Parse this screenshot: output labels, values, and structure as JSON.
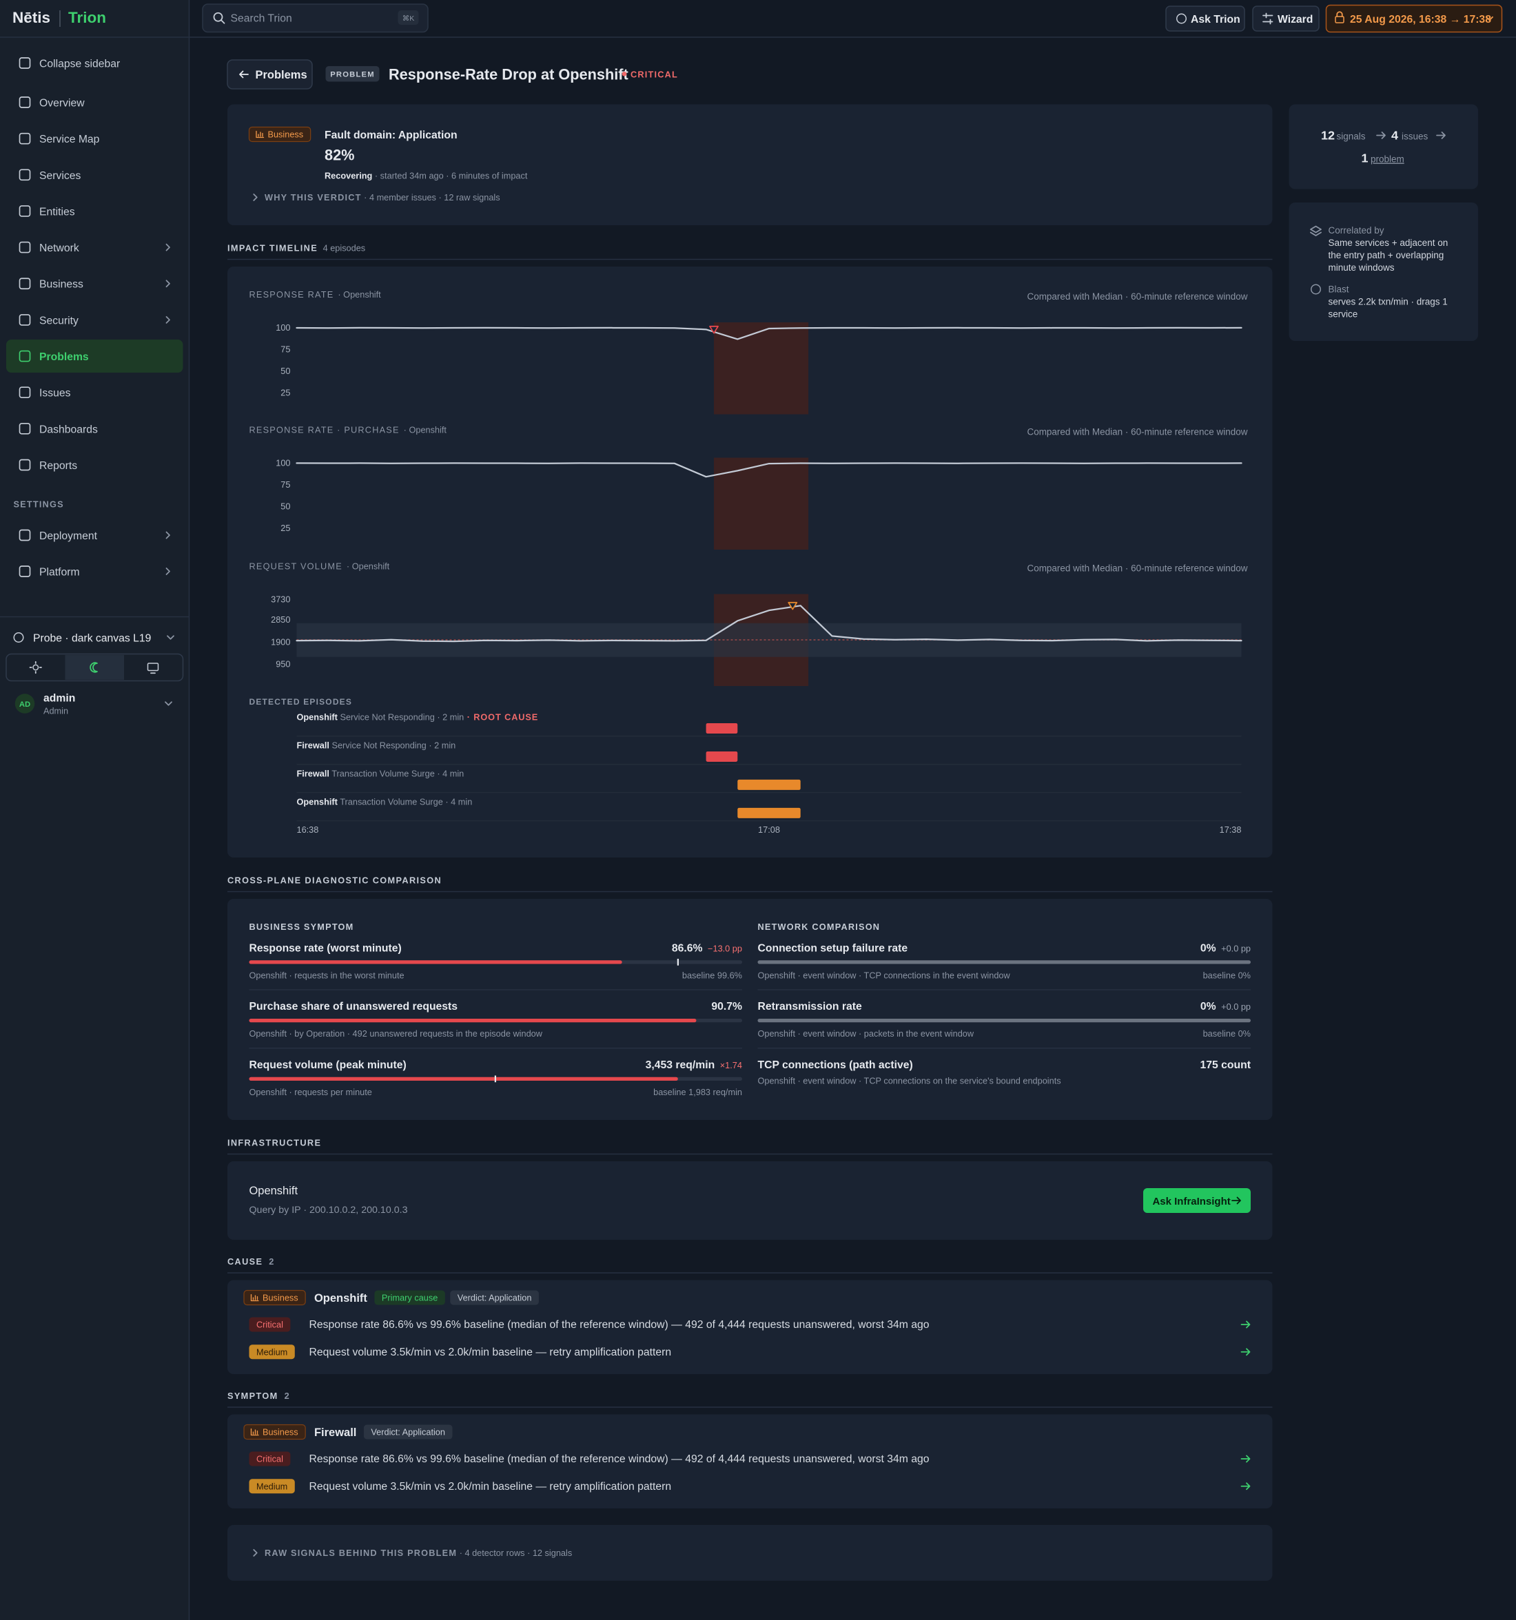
{
  "brand": {
    "logo": "Nētis",
    "product": "Trion"
  },
  "search": {
    "placeholder": "Search Trion",
    "shortcut": "⌘K"
  },
  "topbar": {
    "ask": "Ask Trion",
    "wizard": "Wizard",
    "time_range": "25 Aug 2026, 16:38 → 17:38"
  },
  "sidebar": {
    "collapse": "Collapse sidebar",
    "nav": [
      {
        "label": "Overview"
      },
      {
        "label": "Service Map"
      },
      {
        "label": "Services"
      },
      {
        "label": "Entities"
      },
      {
        "label": "Network",
        "expandable": true
      },
      {
        "label": "Business",
        "expandable": true
      },
      {
        "label": "Security",
        "expandable": true
      },
      {
        "label": "Problems",
        "active": true
      },
      {
        "label": "Issues"
      },
      {
        "label": "Dashboards"
      },
      {
        "label": "Reports"
      }
    ],
    "settings_heading": "SETTINGS",
    "settings": [
      {
        "label": "Deployment",
        "expandable": true
      },
      {
        "label": "Platform",
        "expandable": true
      }
    ],
    "probe": "Probe · dark canvas L19",
    "user": {
      "initials": "AD",
      "name": "admin",
      "role": "Admin"
    }
  },
  "problem": {
    "back": "Problems",
    "tag": "PROBLEM",
    "title": "Response-Rate Drop at Openshift",
    "severity": "CRITICAL"
  },
  "verdict": {
    "badge": "Business",
    "domain": "Fault domain: Application",
    "score": "82%",
    "status": "Recovering",
    "meta": " · started 34m ago · 6 minutes of impact",
    "why": "WHY THIS VERDICT",
    "why_meta": " · 4 member issues · 12 raw signals"
  },
  "summary": {
    "signals": 12,
    "signals_label": "signals",
    "issues": 4,
    "issues_label": "issues",
    "problems": 1,
    "problems_label": "problem"
  },
  "correlation": {
    "correlated_label": "Correlated by",
    "correlated_text": "Same services + adjacent on the entry path + overlapping minute windows",
    "blast_label": "Blast",
    "blast_text": "serves 2.2k txn/min · drags 1 service"
  },
  "timeline": {
    "heading": "IMPACT TIMELINE",
    "meta": "4 episodes",
    "xlim": [
      0,
      60
    ],
    "xticks": [
      {
        "value": 0,
        "label": "16:38"
      },
      {
        "value": 30,
        "label": "17:08"
      },
      {
        "value": 60,
        "label": "17:38"
      }
    ],
    "episodes_heading": "DETECTED EPISODES",
    "episodes": [
      {
        "entity": "Openshift",
        "label": " Service Not Responding",
        "duration": " · 2 min",
        "tag": " · ROOT CAUSE",
        "start": 26,
        "end": 28,
        "color": "#e5484d"
      },
      {
        "entity": "Firewall",
        "label": " Service Not Responding",
        "duration": " · 2 min",
        "start": 26,
        "end": 28,
        "color": "#e5484d"
      },
      {
        "entity": "Firewall",
        "label": " Transaction Volume Surge",
        "duration": " · 4 min",
        "start": 28,
        "end": 32,
        "color": "#e8892b"
      },
      {
        "entity": "Openshift",
        "label": " Transaction Volume Surge",
        "duration": " · 4 min",
        "start": 28,
        "end": 32,
        "color": "#e8892b"
      }
    ]
  },
  "chart_data": [
    {
      "type": "line",
      "title": "RESPONSE RATE",
      "subtitle": "· Openshift",
      "note": "Compared with Median · 60-minute reference window",
      "x": [
        0,
        2,
        4,
        6,
        8,
        10,
        12,
        14,
        16,
        18,
        20,
        22,
        24,
        26,
        28,
        30,
        32,
        34,
        36,
        38,
        40,
        42,
        44,
        46,
        48,
        50,
        52,
        54,
        56,
        58,
        60
      ],
      "values": [
        99.6,
        99.5,
        99.7,
        99.6,
        99.5,
        99.6,
        99.7,
        99.6,
        99.5,
        99.6,
        99.7,
        99.6,
        99.5,
        97.8,
        86.6,
        98.9,
        99.5,
        99.6,
        99.6,
        99.5,
        99.6,
        99.7,
        99.6,
        99.5,
        99.6,
        99.6,
        99.5,
        99.6,
        99.7,
        99.6,
        99.8
      ],
      "color": "#c3cad5",
      "ylim": [
        0,
        106
      ],
      "yticks": [
        100,
        75,
        50,
        25
      ],
      "grid": false,
      "impact_window": [
        26.5,
        32.5
      ],
      "marker_x": 26.5,
      "marker_color": "#e5484d"
    },
    {
      "type": "line",
      "title": "RESPONSE RATE · PURCHASE",
      "subtitle": "· Openshift",
      "note": "Compared with Median · 60-minute reference window",
      "x": [
        0,
        2,
        4,
        6,
        8,
        10,
        12,
        14,
        16,
        18,
        20,
        22,
        24,
        26,
        28,
        30,
        32,
        34,
        36,
        38,
        40,
        42,
        44,
        46,
        48,
        50,
        52,
        54,
        56,
        58,
        60
      ],
      "values": [
        99.7,
        99.6,
        99.7,
        99.5,
        99.6,
        99.7,
        99.6,
        99.6,
        99.5,
        99.7,
        99.6,
        99.6,
        99.4,
        84,
        91,
        99.2,
        99.6,
        99.5,
        99.6,
        99.7,
        99.6,
        99.5,
        99.6,
        99.7,
        99.6,
        99.5,
        99.6,
        99.7,
        99.6,
        99.6,
        99.7
      ],
      "color": "#c3cad5",
      "ylim": [
        0,
        106
      ],
      "yticks": [
        100,
        75,
        50,
        25
      ],
      "grid": false,
      "impact_window": [
        26.5,
        32.5
      ]
    },
    {
      "type": "line",
      "title": "REQUEST VOLUME",
      "subtitle": "· Openshift",
      "note": "Compared with Median · 60-minute reference window",
      "x": [
        0,
        2,
        4,
        6,
        8,
        10,
        12,
        14,
        16,
        18,
        20,
        22,
        24,
        26,
        28,
        30,
        32,
        34,
        36,
        38,
        40,
        42,
        44,
        46,
        48,
        50,
        52,
        54,
        56,
        58,
        60
      ],
      "values": [
        1950,
        1960,
        1940,
        1990,
        1930,
        1920,
        1960,
        1950,
        1970,
        1940,
        1955,
        1950,
        1940,
        1960,
        2800,
        3250,
        3453,
        2150,
        2020,
        1990,
        2010,
        1970,
        2000,
        1960,
        1950,
        1990,
        2000,
        1940,
        1970,
        1960,
        1950
      ],
      "color": "#c3cad5",
      "ylim": [
        0,
        3950
      ],
      "yticks": [
        950,
        1900,
        2850,
        3730
      ],
      "grid": false,
      "impact_window": [
        26.5,
        32.5
      ],
      "baseline": 1983,
      "baseline_band": [
        1250,
        2700
      ],
      "marker_x": 31.5,
      "marker_color": "#e8892b"
    }
  ],
  "cross_plane": {
    "heading": "CROSS-PLANE DIAGNOSTIC COMPARISON",
    "columns": [
      {
        "heading": "BUSINESS SYMPTOM",
        "delta_color": "#f87171",
        "metrics": [
          {
            "name": "Response rate (worst minute)",
            "value": 86.6,
            "value_label": "86.6%",
            "delta": "−13.0 pp",
            "baseline": 99.6,
            "baseline_label": "baseline 99.6%",
            "sub": "Openshift · requests in the worst minute",
            "xlim": [
              0,
              114.5
            ]
          },
          {
            "name": "Purchase share of unanswered requests",
            "value": 90.7,
            "value_label": "90.7%",
            "sub": "Openshift · by Operation · 492 unanswered requests in the episode window",
            "xlim": [
              0,
              100
            ]
          },
          {
            "name": "Request volume (peak minute)",
            "value": 3453,
            "value_label": "3,453 req/min",
            "delta": "×1.74",
            "baseline": 1983,
            "baseline_label": "baseline 1,983 req/min",
            "sub": "Openshift · requests per minute",
            "xlim": [
              0,
              3970
            ]
          }
        ]
      },
      {
        "heading": "NETWORK COMPARISON",
        "delta_color": "#9aa3b1",
        "metrics": [
          {
            "name": "Connection setup failure rate",
            "value": 0,
            "value_label": "0%",
            "delta": "+0.0 pp",
            "baseline": 0,
            "baseline_label": "baseline 0%",
            "sub": "Openshift · event window · TCP connections in the event window",
            "xlim": [
              0,
              100
            ]
          },
          {
            "name": "Retransmission rate",
            "value": 0,
            "value_label": "0%",
            "delta": "+0.0 pp",
            "baseline": 0,
            "baseline_label": "baseline 0%",
            "sub": "Openshift · event window · packets in the event window",
            "xlim": [
              0,
              100
            ]
          },
          {
            "name": "TCP connections (path active)",
            "value": 175,
            "value_label": "175 count",
            "sub": "Openshift · event window · TCP connections on the service's bound endpoints"
          }
        ]
      }
    ]
  },
  "infrastructure": {
    "heading": "INFRASTRUCTURE",
    "name": "Openshift",
    "query": "Query by IP · 200.10.0.2, 200.10.0.3",
    "button": "Ask InfraInsight"
  },
  "cause": {
    "heading": "CAUSE",
    "count": 2,
    "card": {
      "badge": "Business",
      "entity": "Openshift",
      "primary": "Primary cause",
      "verdict": "Verdict: Application",
      "items": [
        {
          "severity": "Critical",
          "text": "Response rate 86.6% vs 99.6% baseline (median of the reference window) — 492 of 4,444 requests unanswered, worst 34m ago"
        },
        {
          "severity": "Medium",
          "text": "Request volume 3.5k/min vs 2.0k/min baseline — retry amplification pattern"
        }
      ]
    }
  },
  "symptom": {
    "heading": "SYMPTOM",
    "count": 2,
    "card": {
      "badge": "Business",
      "entity": "Firewall",
      "verdict": "Verdict: Application",
      "items": [
        {
          "severity": "Critical",
          "text": "Response rate 86.6% vs 99.6% baseline (median of the reference window) — 492 of 4,444 requests unanswered, worst 34m ago"
        },
        {
          "severity": "Medium",
          "text": "Request volume 3.5k/min vs 2.0k/min baseline — retry amplification pattern"
        }
      ]
    }
  },
  "raw_signals": {
    "title": "RAW SIGNALS BEHIND THIS PROBLEM",
    "meta": " · 4 detector rows · 12 signals"
  }
}
